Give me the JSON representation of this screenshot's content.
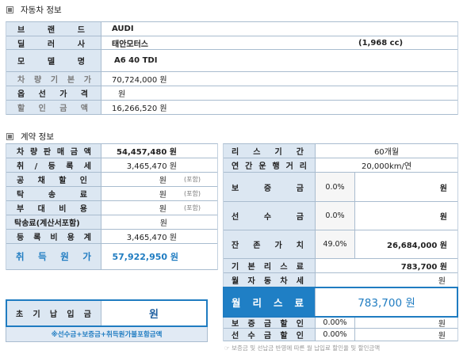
{
  "vehicle_info": {
    "title": "자동차 정보",
    "icon": "square-bullet-icon",
    "brand": {
      "label": "브 랜 드",
      "value": "AUDI"
    },
    "dealer": {
      "label": "딜 러 사",
      "value": "태안모터스",
      "displacement": "(1,968 cc)"
    },
    "model": {
      "label": "모 델 명",
      "value": "A6 40 TDI"
    },
    "base_price": {
      "label": "차 량 기 본 가",
      "value": "70,724,000 원"
    },
    "option_price": {
      "label": "옵 선 가 격",
      "value": "원"
    },
    "discount": {
      "label": "할 인 금 액",
      "value": "16,266,520 원"
    }
  },
  "contract_info": {
    "title": "계약 정보",
    "icon": "square-bullet-icon",
    "costs": {
      "sale_price": {
        "label": "차 량 판 매 금 액",
        "value": "54,457,480 원"
      },
      "acq_tax": {
        "label": "취 / 등 록 세",
        "value": "3,465,470 원"
      },
      "bond_discount": {
        "label": "공 채 할 인",
        "value": "원",
        "note": "(포함)"
      },
      "delivery_fee": {
        "label": "탁 송 료",
        "value": "원",
        "note": "(포함)"
      },
      "misc_cost": {
        "label": "부 대 비 용",
        "value": "원",
        "note": "(포함)"
      },
      "delivery_invoice": {
        "label": "탁송료(계산서포함)",
        "value": "원"
      },
      "registration_total": {
        "label": "등 록 비 용 계",
        "value": "3,465,470 원"
      },
      "acquisition_cost": {
        "label": "취 득 원 가",
        "value": "57,922,950 원"
      }
    },
    "lease": {
      "period": {
        "label": "리 스 기 간",
        "value": "60개월"
      },
      "mileage": {
        "label": "연 간 운 행 거 리",
        "value": "20,000km/연"
      },
      "deposit": {
        "label": "보 증 금",
        "rate": "0.0%",
        "value": "원"
      },
      "prepayment": {
        "label": "선 수 금",
        "rate": "0.0%",
        "value": "원"
      },
      "residual": {
        "label": "잔 존 가 치",
        "rate": "49.0%",
        "value": "26,684,000 원"
      },
      "base_fee": {
        "label": "기 본 리 스 료",
        "value": "783,700 원"
      },
      "car_tax": {
        "label": "월 자 동 차 세",
        "value": "원"
      },
      "monthly_fee": {
        "label": "월 리 스 료",
        "value": "783,700 원"
      },
      "deposit_discount": {
        "label": "보 증 금 할 인",
        "rate": "0.00%",
        "value": "원"
      },
      "prepay_discount": {
        "label": "선 수 금 할 인",
        "rate": "0.00%",
        "value": "원"
      }
    },
    "initial_payment": {
      "label": "초 기 납 입 금",
      "value": "원",
      "note": "※선수금+보증금+취득원가불포함금액"
    },
    "footnote": "☞ 보증금 및 선납금 반영에 따른 월 납입료 할인율 및 할인금액"
  },
  "colors": {
    "accent": "#1f7cc1",
    "label_bg": "#dce7f2",
    "border": "#a9bccf"
  }
}
